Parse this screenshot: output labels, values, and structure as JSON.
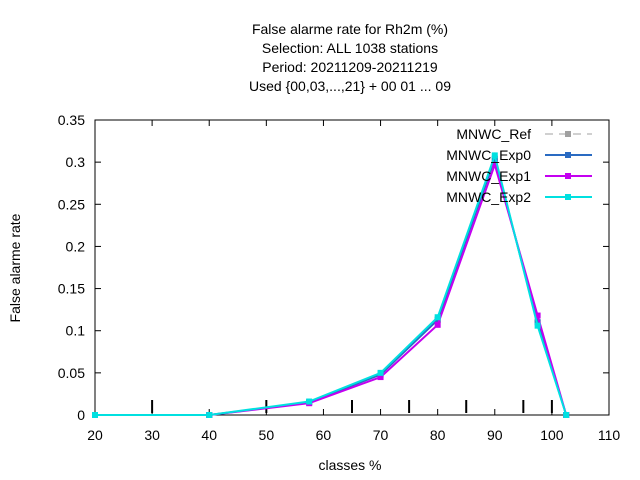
{
  "chart_data": {
    "type": "line",
    "title_lines": [
      "False alarme rate  for Rh2m (%)",
      "Selection: ALL    1038 stations",
      "Period: 20211209-20211219",
      "Used {00,03,...,21} + 00 01 ... 09"
    ],
    "xlabel": "classes %",
    "ylabel": "False alarme rate",
    "xlim": [
      20,
      110
    ],
    "ylim": [
      0,
      0.35
    ],
    "x_ticks": [
      20,
      30,
      40,
      50,
      60,
      70,
      80,
      90,
      100,
      110
    ],
    "y_ticks": [
      0,
      0.05,
      0.1,
      0.15,
      0.2,
      0.25,
      0.3,
      0.35
    ],
    "y_tick_labels": [
      "0",
      "0.05",
      "0.1",
      "0.15",
      "0.2",
      "0.25",
      "0.3",
      "0.35"
    ],
    "class_markers_x": [
      30,
      50,
      65,
      75,
      85,
      95,
      100
    ],
    "grid": false,
    "legend_position": "top-right",
    "x": [
      20,
      40,
      57.5,
      70,
      80,
      90,
      97.5,
      102.5
    ],
    "series": [
      {
        "name": "MNWC_Ref",
        "color": "#a0a0a0",
        "style": "dashed",
        "marker": "square",
        "values": [
          0,
          0,
          0.015,
          0.048,
          0.113,
          0.304,
          0.11,
          0
        ]
      },
      {
        "name": "MNWC_Exp0",
        "color": "#2a6bc2",
        "style": "solid",
        "marker": "square",
        "values": [
          0,
          0,
          0.015,
          0.048,
          0.113,
          0.304,
          0.11,
          0
        ]
      },
      {
        "name": "MNWC_Exp1",
        "color": "#c400f0",
        "style": "solid",
        "marker": "square",
        "values": [
          0,
          0,
          0.014,
          0.045,
          0.107,
          0.297,
          0.118,
          0
        ]
      },
      {
        "name": "MNWC_Exp2",
        "color": "#00e0e0",
        "style": "solid",
        "marker": "square",
        "values": [
          0,
          0,
          0.016,
          0.05,
          0.116,
          0.308,
          0.106,
          0
        ]
      }
    ]
  }
}
